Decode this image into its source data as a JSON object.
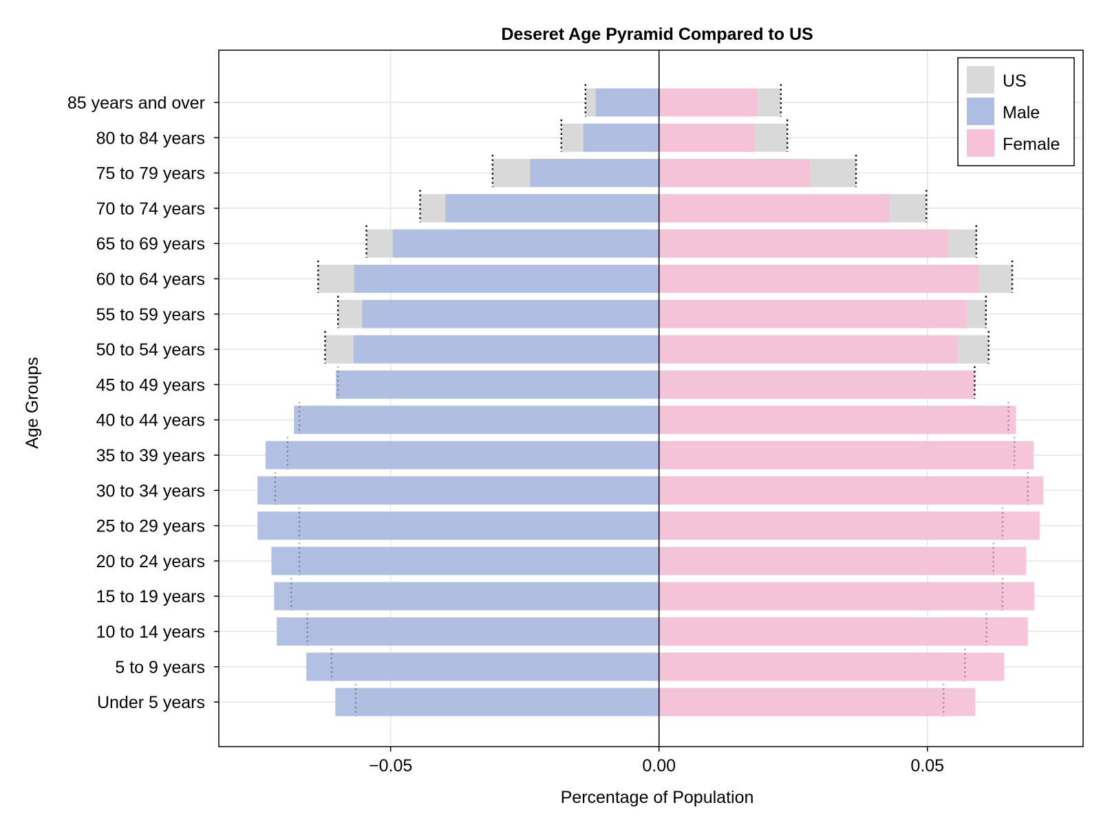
{
  "chart_data": {
    "type": "bar",
    "orientation": "horizontal",
    "title": "Deseret Age Pyramid Compared to US",
    "xlabel": "Percentage of Population",
    "ylabel": "Age Groups",
    "xlim": [
      -0.082,
      0.079
    ],
    "xticks": [
      -0.05,
      0.0,
      0.05
    ],
    "xtick_labels": [
      "−0.05",
      "0.00",
      "0.05"
    ],
    "grid": true,
    "legend_position": "top-right",
    "categories": [
      "Under 5 years",
      "5 to 9 years",
      "10 to 14 years",
      "15 to 19 years",
      "20 to 24 years",
      "25 to 29 years",
      "30 to 34 years",
      "35 to 39 years",
      "40 to 44 years",
      "45 to 49 years",
      "50 to 54 years",
      "55 to 59 years",
      "60 to 64 years",
      "65 to 69 years",
      "70 to 74 years",
      "75 to 79 years",
      "80 to 84 years",
      "85 years and over"
    ],
    "series": [
      {
        "name": "US",
        "color": "#d9d9d9",
        "male": [
          -0.0565,
          -0.061,
          -0.0655,
          -0.0685,
          -0.067,
          -0.067,
          -0.0715,
          -0.0692,
          -0.067,
          -0.0598,
          -0.0622,
          -0.0598,
          -0.0635,
          -0.0545,
          -0.0445,
          -0.031,
          -0.0182,
          -0.0137
        ],
        "female": [
          0.053,
          0.057,
          0.061,
          0.064,
          0.0623,
          0.064,
          0.0687,
          0.0662,
          0.0651,
          0.0588,
          0.0614,
          0.0609,
          0.0658,
          0.0591,
          0.0498,
          0.0367,
          0.0239,
          0.0227
        ]
      },
      {
        "name": "Male",
        "color": "#aebde3",
        "values": [
          -0.0603,
          -0.0657,
          -0.0712,
          -0.0717,
          -0.0722,
          -0.0748,
          -0.0748,
          -0.0733,
          -0.068,
          -0.0602,
          -0.0569,
          -0.0553,
          -0.0568,
          -0.0496,
          -0.0398,
          -0.024,
          -0.0141,
          -0.0118
        ]
      },
      {
        "name": "Female",
        "color": "#f6c2d8",
        "values": [
          0.0589,
          0.0643,
          0.0687,
          0.0699,
          0.0684,
          0.0709,
          0.0716,
          0.0698,
          0.0665,
          0.0588,
          0.0557,
          0.0573,
          0.0596,
          0.0539,
          0.0429,
          0.0281,
          0.0178,
          0.0183
        ]
      }
    ]
  }
}
